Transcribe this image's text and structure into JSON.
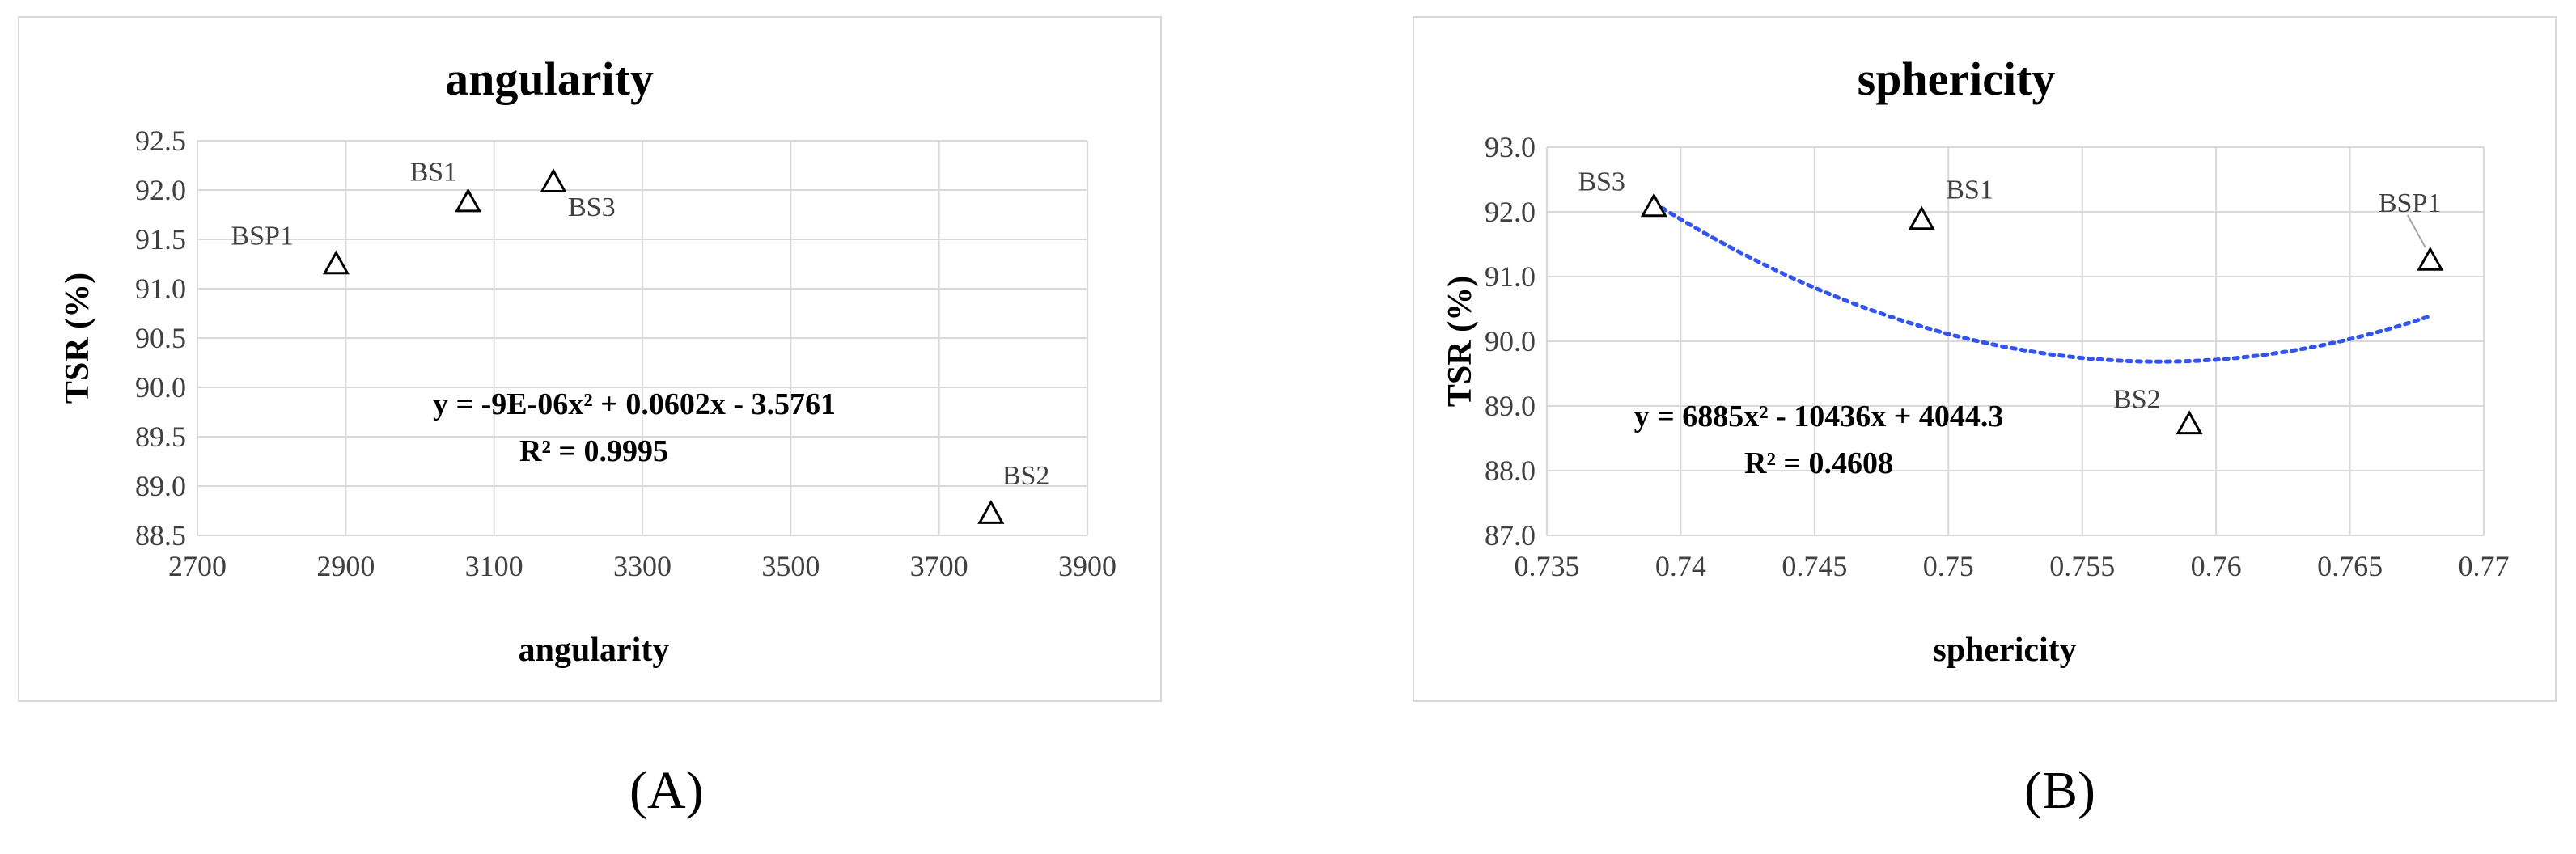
{
  "figure_labels": [
    "(A)",
    "(B)"
  ],
  "chart_data": [
    {
      "type": "scatter",
      "title": "angularity",
      "xlabel": "angularity",
      "ylabel": "TSR (%)",
      "xlim": [
        2700,
        3900
      ],
      "ylim": [
        88.5,
        92.5
      ],
      "x_ticks": [
        "2700",
        "2900",
        "3100",
        "3300",
        "3500",
        "3700",
        "3900"
      ],
      "y_ticks": [
        "88.5",
        "89.0",
        "89.5",
        "90.0",
        "90.5",
        "91.0",
        "91.5",
        "92.0",
        "92.5"
      ],
      "grid": true,
      "colors": {
        "trendline": "#3355ee",
        "marker": "#000000",
        "grid": "#d9d9d9"
      },
      "points": [
        {
          "label": "BSP1",
          "x": 2887,
          "y": 91.25
        },
        {
          "label": "BS1",
          "x": 3065,
          "y": 91.88
        },
        {
          "label": "BS3",
          "x": 3180,
          "y": 92.08
        },
        {
          "label": "BS2",
          "x": 3770,
          "y": 88.72
        }
      ],
      "trendline": {
        "type": "polynomial",
        "a": -9e-06,
        "b": 0.0602,
        "c": -3.5761,
        "x_range": [
          2887,
          3770
        ]
      },
      "equation": [
        "y = -9E-06x² + 0.0602x - 3.5761",
        "R² = 0.9995"
      ]
    },
    {
      "type": "scatter",
      "title": "sphericity",
      "xlabel": "sphericity",
      "ylabel": "TSR (%)",
      "xlim": [
        0.735,
        0.77
      ],
      "ylim": [
        87.0,
        93.0
      ],
      "x_ticks": [
        "0.735",
        "0.74",
        "0.745",
        "0.75",
        "0.755",
        "0.76",
        "0.765",
        "0.77"
      ],
      "y_ticks": [
        "87.0",
        "88.0",
        "89.0",
        "90.0",
        "91.0",
        "92.0",
        "93.0"
      ],
      "grid": true,
      "colors": {
        "trendline": "#3355ee",
        "marker": "#000000",
        "grid": "#d9d9d9"
      },
      "points": [
        {
          "label": "BS3",
          "x": 0.739,
          "y": 92.08
        },
        {
          "label": "BS1",
          "x": 0.749,
          "y": 91.88
        },
        {
          "label": "BS2",
          "x": 0.759,
          "y": 88.72
        },
        {
          "label": "BSP1",
          "x": 0.768,
          "y": 91.25
        }
      ],
      "trendline": {
        "type": "polynomial",
        "a": 6885,
        "b": -10436,
        "c": 4044.3,
        "x_range": [
          0.739,
          0.768
        ]
      },
      "equation": [
        "y = 6885x² - 10436x + 4044.3",
        "R² = 0.4608"
      ]
    }
  ]
}
